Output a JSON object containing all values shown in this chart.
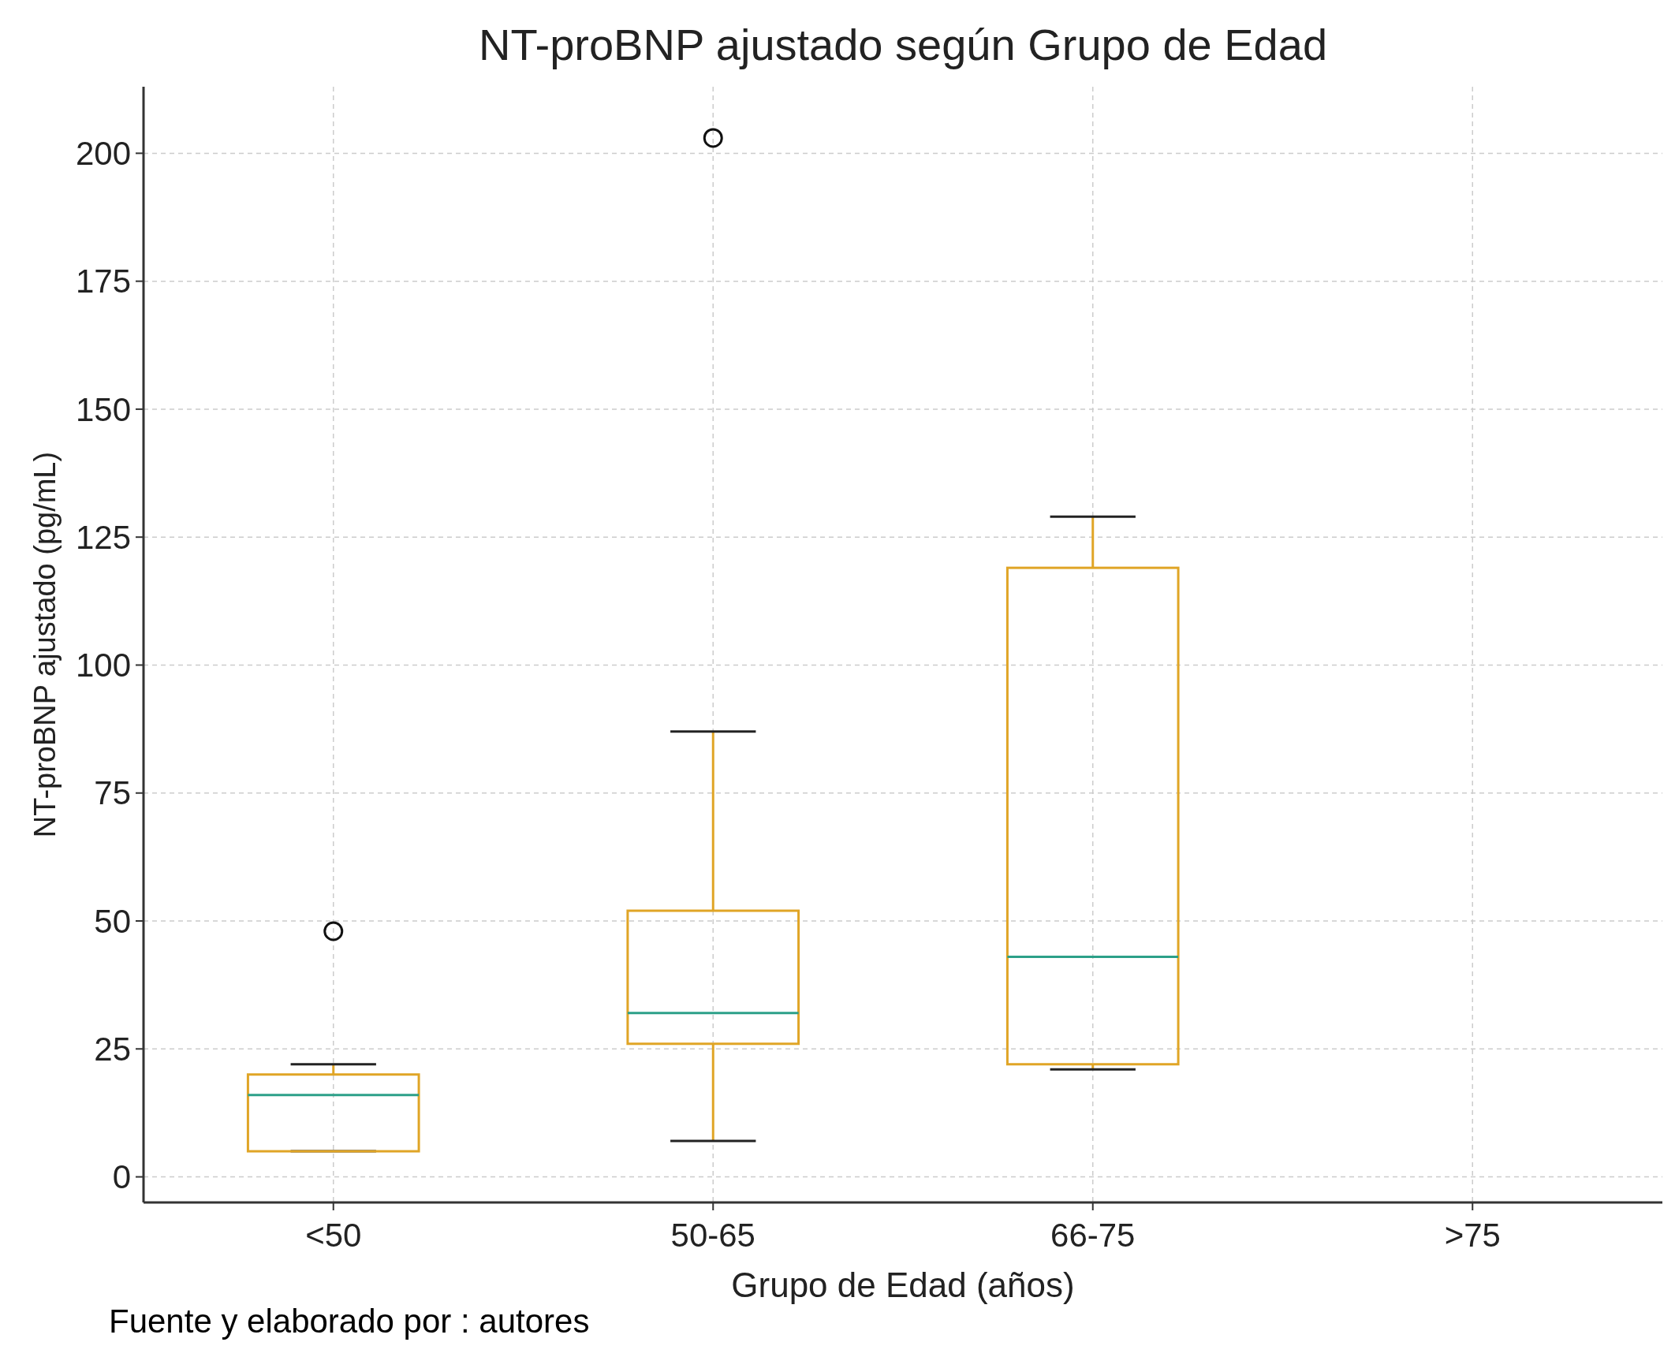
{
  "chart_data": {
    "type": "box",
    "title": "NT-proBNP ajustado según Grupo de Edad",
    "xlabel": "Grupo de Edad (años)",
    "ylabel": "NT-proBNP ajustado (pg/mL)",
    "categories": [
      "<50",
      "50-65",
      "66-75",
      ">75"
    ],
    "color": "#e0a526",
    "boxes": [
      {
        "low": 5,
        "q1": 5,
        "median": 16,
        "q3": 20,
        "high": 22,
        "outliers": [
          48
        ]
      },
      {
        "low": 7,
        "q1": 26,
        "median": 32,
        "q3": 52,
        "high": 87,
        "outliers": [
          203
        ]
      },
      {
        "low": 21,
        "q1": 22,
        "median": 43,
        "q3": 119,
        "high": 129
      },
      null
    ],
    "ylim": [
      -5,
      213
    ],
    "yticks": [
      0,
      25,
      50,
      75,
      100,
      125,
      150,
      175,
      200
    ],
    "grid": true,
    "annotations": [
      "Fuente y elaborado por : autores"
    ]
  }
}
